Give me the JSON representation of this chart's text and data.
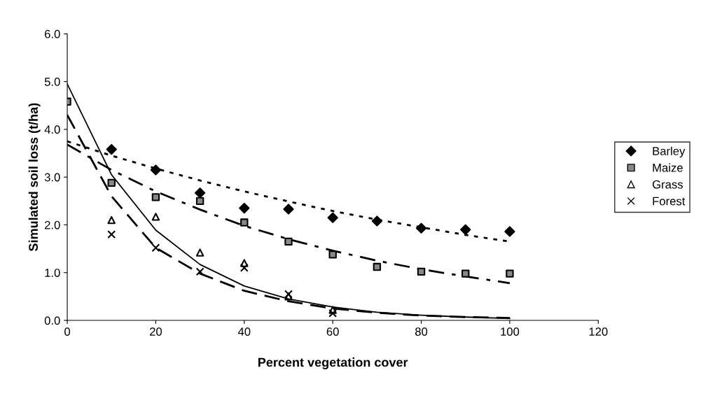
{
  "chart_data": {
    "type": "scatter",
    "xlabel": "Percent vegetation cover",
    "ylabel": "Simulated soil loss (t/ha)",
    "xlim": [
      0,
      120
    ],
    "xticks": [
      0,
      20,
      40,
      60,
      80,
      100,
      120
    ],
    "ylim": [
      0,
      6
    ],
    "yticks": [
      {
        "value": 0,
        "label": "0.0"
      },
      {
        "value": 1,
        "label": "1.0"
      },
      {
        "value": 2,
        "label": "2.0"
      },
      {
        "value": 3,
        "label": "3.0"
      },
      {
        "value": 4,
        "label": "4.0"
      },
      {
        "value": 5,
        "label": "5.0"
      },
      {
        "value": 6,
        "label": "6.0"
      }
    ],
    "grid": false,
    "legend": "right",
    "series": [
      {
        "name": "Barley",
        "color": "#000000",
        "marker": "diamond",
        "x": [
          10,
          20,
          30,
          40,
          50,
          60,
          70,
          80,
          90,
          100
        ],
        "values": [
          3.58,
          3.15,
          2.67,
          2.35,
          2.33,
          2.15,
          2.08,
          1.93,
          1.9,
          1.86
        ]
      },
      {
        "name": "Maize",
        "color": "#000000",
        "marker": "square",
        "x": [
          0,
          10,
          20,
          30,
          40,
          50,
          60,
          70,
          80,
          90,
          100
        ],
        "values": [
          4.58,
          2.88,
          2.58,
          2.5,
          2.05,
          1.65,
          1.38,
          1.12,
          1.02,
          0.98,
          0.98
        ]
      },
      {
        "name": "Grass",
        "color": "#000000",
        "marker": "triangle",
        "x": [
          10,
          20,
          30,
          40,
          50,
          60
        ],
        "values": [
          2.1,
          2.17,
          1.42,
          1.2,
          0.5,
          0.22
        ]
      },
      {
        "name": "Forest",
        "color": "#000000",
        "marker": "cross",
        "x": [
          10,
          20,
          30,
          40,
          50,
          60
        ],
        "values": [
          1.8,
          1.52,
          1.02,
          1.1,
          0.55,
          0.15
        ]
      },
      {
        "type": "line",
        "color": "#000000",
        "line_style": "dotted",
        "x": [
          0,
          10,
          20,
          30,
          40,
          50,
          60,
          70,
          80,
          90,
          100
        ],
        "values": [
          3.75,
          3.45,
          3.18,
          2.93,
          2.7,
          2.49,
          2.29,
          2.11,
          1.95,
          1.79,
          1.65
        ]
      },
      {
        "type": "line",
        "color": "#000000",
        "line_style": "dashdot",
        "x": [
          0,
          10,
          20,
          30,
          40,
          50,
          60,
          70,
          80,
          90,
          100
        ],
        "values": [
          3.68,
          3.15,
          2.7,
          2.32,
          1.98,
          1.7,
          1.46,
          1.25,
          1.07,
          0.92,
          0.78
        ]
      },
      {
        "type": "line",
        "color": "#000000",
        "line_style": "solid",
        "x": [
          0,
          10,
          20,
          30,
          40,
          50,
          60,
          70,
          80,
          90,
          100
        ],
        "values": [
          4.95,
          3.05,
          1.89,
          1.17,
          0.72,
          0.45,
          0.28,
          0.17,
          0.11,
          0.07,
          0.04
        ]
      },
      {
        "type": "line",
        "color": "#000000",
        "line_style": "dashed",
        "x": [
          0,
          10,
          20,
          30,
          40,
          50,
          60,
          70,
          80,
          90,
          100
        ],
        "values": [
          4.3,
          2.6,
          1.52,
          0.98,
          0.62,
          0.4,
          0.25,
          0.16,
          0.1,
          0.07,
          0.05
        ]
      }
    ]
  }
}
